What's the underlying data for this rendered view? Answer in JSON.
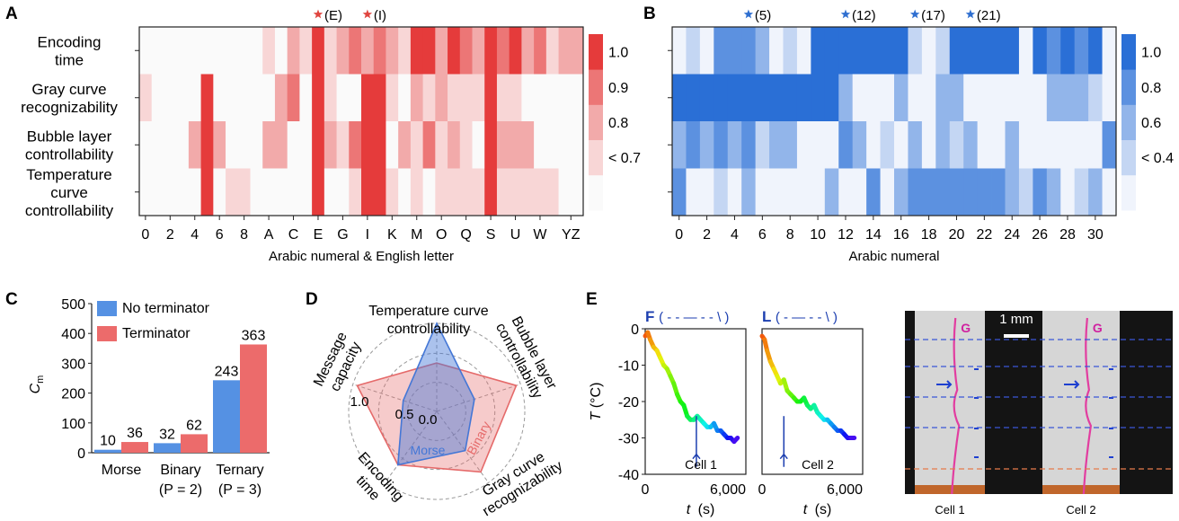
{
  "panel_labels": {
    "a": "A",
    "b": "B",
    "c": "C",
    "d": "D",
    "e": "E"
  },
  "colors": {
    "red_scale": [
      "#fafafa",
      "#f8d6d6",
      "#f2aaaa",
      "#ec7676",
      "#e53b3b"
    ],
    "blue_scale": [
      "#f0f4fc",
      "#c4d6f3",
      "#92b5ea",
      "#5c91e0",
      "#2a6fd6"
    ],
    "bar_blue": "#5591e3",
    "bar_red": "#ec6b6b",
    "radar_red": "#e56a6a",
    "radar_blue": "#4477d6",
    "star_red": "#e0453f",
    "star_blue": "#2f6fd0"
  },
  "panel_a": {
    "chart_data": {
      "type": "heatmap",
      "rows": [
        "Encoding time",
        "Gray curve recognizability",
        "Bubble layer controllability",
        "Temperature curve controllability"
      ],
      "row_label_lines": [
        [
          "Encoding",
          "time"
        ],
        [
          "Gray curve",
          "recognizability"
        ],
        [
          "Bubble layer",
          "controllability"
        ],
        [
          "Temperature",
          "curve",
          "controllability"
        ]
      ],
      "columns": [
        "0",
        "1",
        "2",
        "3",
        "4",
        "5",
        "6",
        "7",
        "8",
        "9",
        "A",
        "B",
        "C",
        "D",
        "E",
        "F",
        "G",
        "H",
        "I",
        "J",
        "K",
        "L",
        "M",
        "N",
        "O",
        "P",
        "Q",
        "R",
        "S",
        "T",
        "U",
        "V",
        "W",
        "X",
        "Y",
        "Z"
      ],
      "tick_labels": [
        "0",
        "2",
        "4",
        "6",
        "8",
        "A",
        "C",
        "E",
        "G",
        "I",
        "K",
        "M",
        "O",
        "Q",
        "S",
        "U",
        "W",
        "YZ"
      ],
      "tick_positions": [
        0,
        2,
        4,
        6,
        8,
        10,
        12,
        14,
        16,
        18,
        20,
        22,
        24,
        26,
        28,
        30,
        32,
        34.5
      ],
      "values": [
        [
          0,
          0,
          0,
          0,
          0,
          0,
          0,
          0,
          0,
          0,
          0.7,
          0,
          0.8,
          0.7,
          1.0,
          0.7,
          0.8,
          0.9,
          0.8,
          0.9,
          0.8,
          0.7,
          1.0,
          1.0,
          0.8,
          1.0,
          0.9,
          0.8,
          1.0,
          0.9,
          1.0,
          0.8,
          0.9,
          0.7,
          0.8,
          0.8
        ],
        [
          0.7,
          0,
          0,
          0,
          0,
          1.0,
          0,
          0,
          0,
          0,
          0,
          0.8,
          0.9,
          0,
          1.0,
          0.7,
          0,
          0,
          1.0,
          1.0,
          0.7,
          0,
          0.8,
          0.7,
          0.8,
          0.7,
          0.7,
          0.7,
          1.0,
          0.7,
          0.7,
          0,
          0,
          0,
          0,
          0
        ],
        [
          0,
          0,
          0,
          0,
          0.8,
          1.0,
          0.8,
          0,
          0,
          0,
          0.8,
          0.8,
          0,
          0,
          1.0,
          0.8,
          0.7,
          0.9,
          1.0,
          1.0,
          0,
          0.8,
          0.7,
          0.9,
          0.7,
          0.8,
          0.7,
          0,
          1.0,
          0.8,
          0.8,
          0.8,
          0,
          0,
          0,
          0
        ],
        [
          0,
          0,
          0,
          0,
          0,
          1.0,
          0,
          0.7,
          0.7,
          0,
          0,
          0,
          0,
          0,
          1.0,
          0,
          0,
          0.7,
          1.0,
          1.0,
          0.7,
          0,
          0.7,
          0,
          0.7,
          0.7,
          0.7,
          0.7,
          1.0,
          0.7,
          0.7,
          0.7,
          0.7,
          0.7,
          0,
          0
        ]
      ],
      "colorbar_ticks": [
        "1.0",
        "0.9",
        "0.8",
        "< 0.7"
      ],
      "xlabel": "Arabic numeral & English letter",
      "annotations": [
        {
          "col": 14,
          "label": "(E)"
        },
        {
          "col": 18,
          "label": "(I)"
        }
      ]
    }
  },
  "panel_b": {
    "chart_data": {
      "type": "heatmap",
      "rows": [
        "Encoding time",
        "Gray curve recognizability",
        "Bubble layer controllability",
        "Temperature curve controllability"
      ],
      "columns": [
        "0",
        "1",
        "2",
        "3",
        "4",
        "5",
        "6",
        "7",
        "8",
        "9",
        "10",
        "11",
        "12",
        "13",
        "14",
        "15",
        "16",
        "17",
        "18",
        "19",
        "20",
        "21",
        "22",
        "23",
        "24",
        "25",
        "26",
        "27",
        "28",
        "29",
        "30",
        "31"
      ],
      "tick_labels": [
        "0",
        "2",
        "4",
        "6",
        "8",
        "10",
        "12",
        "14",
        "16",
        "18",
        "20",
        "22",
        "24",
        "26",
        "28",
        "30"
      ],
      "values": [
        [
          0.4,
          0.5,
          0.4,
          0.7,
          0.7,
          0.7,
          0.6,
          0.4,
          0.5,
          0.4,
          1.0,
          1.0,
          1.0,
          1.0,
          1.0,
          1.0,
          1.0,
          0.5,
          0.4,
          0.5,
          1.0,
          1.0,
          1.0,
          1.0,
          1.0,
          0.4,
          1.0,
          0.8,
          1.0,
          0.7,
          1.0,
          0.4
        ],
        [
          1.0,
          1.0,
          1.0,
          1.0,
          1.0,
          1.0,
          1.0,
          1.0,
          1.0,
          1.0,
          1.0,
          1.0,
          0.6,
          0.4,
          0.4,
          0.4,
          0.6,
          0.4,
          0.4,
          0.6,
          0.6,
          0.4,
          0.4,
          0.4,
          0.4,
          0.4,
          0.4,
          0.6,
          0.6,
          0.6,
          0.5,
          0.4
        ],
        [
          0.6,
          0.8,
          0.6,
          0.7,
          0.6,
          0.8,
          0.5,
          0.6,
          0.6,
          0.4,
          0.4,
          0.4,
          0.8,
          0.6,
          0.4,
          0.5,
          0.4,
          0.6,
          0.4,
          0.6,
          0.5,
          0.6,
          0.4,
          0.4,
          0.6,
          0.4,
          0.4,
          0.4,
          0.4,
          0.4,
          0.4,
          0.7
        ],
        [
          0.8,
          0.4,
          0.4,
          0.5,
          0.4,
          0.6,
          0.4,
          0.4,
          0.4,
          0.4,
          0.4,
          0.6,
          0.4,
          0.4,
          0.7,
          0.4,
          0.6,
          0.7,
          0.8,
          0.8,
          0.8,
          0.8,
          0.8,
          0.8,
          0.6,
          0.5,
          0.7,
          0.6,
          0.4,
          0.5,
          0.6,
          0.4
        ]
      ],
      "colorbar_ticks": [
        "1.0",
        "0.8",
        "0.6",
        "< 0.4"
      ],
      "xlabel": "Arabic numeral",
      "annotations": [
        {
          "col": 5,
          "label": "(5)"
        },
        {
          "col": 12,
          "label": "(12)"
        },
        {
          "col": 17,
          "label": "(17)"
        },
        {
          "col": 21,
          "label": "(21)"
        }
      ]
    }
  },
  "panel_c": {
    "chart_data": {
      "type": "bar",
      "categories": [
        "Morse",
        "Binary",
        "Ternary"
      ],
      "category_sublabels": [
        "",
        "(P = 2)",
        "(P = 3)"
      ],
      "series": [
        {
          "name": "No terminator",
          "values": [
            10,
            32,
            243
          ]
        },
        {
          "name": "Terminator",
          "values": [
            36,
            62,
            363
          ]
        }
      ],
      "ylabel": "C",
      "ylabel_sub": "m",
      "ylim": [
        0,
        500
      ],
      "yticks": [
        "0",
        "100",
        "200",
        "300",
        "400",
        "500"
      ],
      "legend": "top-left"
    }
  },
  "panel_d": {
    "chart_data": {
      "type": "radar",
      "axes": [
        "Temperature curve controllability",
        "Bubble layer controllability",
        "Gray curve recognizability",
        "Encoding time",
        "Message capacity"
      ],
      "axis_label_lines": [
        [
          "Temperature curve",
          "controllability"
        ],
        [
          "Bubble layer",
          "controllability"
        ],
        [
          "Gray curve",
          "recognizability"
        ],
        [
          "Encoding",
          "time"
        ],
        [
          "Message",
          "capacity"
        ]
      ],
      "rings": [
        "0.0",
        "0.5",
        "1.0"
      ],
      "series": [
        {
          "name": "Binary",
          "values": [
            0.55,
            0.95,
            0.85,
            0.75,
            0.95
          ]
        },
        {
          "name": "Morse",
          "values": [
            1.0,
            0.45,
            0.55,
            0.75,
            0.4
          ]
        }
      ]
    }
  },
  "panel_e": {
    "chart_data": [
      {
        "type": "line",
        "cell": "Cell 1",
        "title_letter": "F",
        "title_pattern": "( - - — - - \\ )",
        "x": [
          0,
          150,
          300,
          500,
          700,
          900,
          1100,
          1300,
          1500,
          1700,
          1900,
          2100,
          2300,
          2500,
          2700,
          2900,
          3100,
          3300,
          3500,
          3700,
          3900,
          4100,
          4300,
          4500,
          4700,
          4900,
          5100,
          5300,
          5500
        ],
        "y": [
          -2,
          -1,
          -3,
          -5,
          -6,
          -8,
          -10,
          -11,
          -13,
          -15,
          -18,
          -20,
          -21,
          -24,
          -25,
          -25,
          -24,
          -25,
          -26,
          -27,
          -27,
          -26,
          -28,
          -28,
          -29,
          -30,
          -30,
          -31,
          -30
        ],
        "xlabel": "t",
        "xunit": "(s)",
        "ylabel": "T",
        "yunit": "(°C)",
        "xlim": [
          0,
          6000
        ],
        "ylim": [
          -40,
          0
        ],
        "xticks": [
          "0",
          "6,000"
        ],
        "yticks": [
          "0",
          "-10",
          "-20",
          "-30",
          "-40"
        ],
        "arrow_x": 3050
      },
      {
        "type": "line",
        "cell": "Cell 2",
        "title_letter": "L",
        "title_pattern": "( - — - - \\ )",
        "x": [
          0,
          150,
          300,
          500,
          700,
          900,
          1100,
          1300,
          1500,
          1700,
          1900,
          2100,
          2300,
          2500,
          2700,
          2900,
          3100,
          3300,
          3500,
          3700,
          3900,
          4100,
          4300,
          4500,
          4700,
          4900,
          5100,
          5300,
          5500
        ],
        "y": [
          -2,
          -3,
          -6,
          -9,
          -11,
          -13,
          -15,
          -14,
          -17,
          -18,
          -19,
          -20,
          -20,
          -19,
          -21,
          -22,
          -21,
          -23,
          -24,
          -25,
          -25,
          -26,
          -27,
          -28,
          -28,
          -29,
          -30,
          -30,
          -30
        ],
        "xlabel": "t",
        "xunit": "(s)",
        "xlim": [
          0,
          6000
        ],
        "ylim": [
          -40,
          0
        ],
        "xticks": [
          "0",
          "6,000"
        ],
        "arrow_x": 1300
      }
    ],
    "photo": {
      "scale_label": "1 mm",
      "marker": "G",
      "cell_labels": [
        "Cell 1",
        "Cell 2"
      ]
    }
  }
}
